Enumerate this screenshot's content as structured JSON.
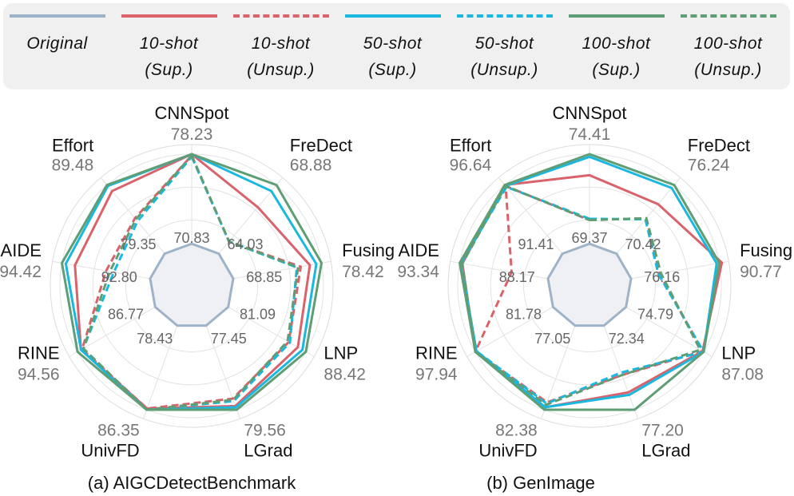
{
  "legend": {
    "items": [
      {
        "name": "Original",
        "line1": "Original",
        "line2": "",
        "color": "#9fb3c8",
        "dashed": false
      },
      {
        "name": "10-shot (Sup.)",
        "line1": "10-shot",
        "line2": "(Sup.)",
        "color": "#d9626b",
        "dashed": false
      },
      {
        "name": "10-shot (Unsup.)",
        "line1": "10-shot",
        "line2": "(Unsup.)",
        "color": "#d9626b",
        "dashed": true
      },
      {
        "name": "50-shot (Sup.)",
        "line1": "50-shot",
        "line2": "(Sup.)",
        "color": "#1ab8e0",
        "dashed": false
      },
      {
        "name": "50-shot (Unsup.)",
        "line1": "50-shot",
        "line2": "(Unsup.)",
        "color": "#1ab8e0",
        "dashed": true
      },
      {
        "name": "100-shot (Sup.)",
        "line1": "100-shot",
        "line2": "(Sup.)",
        "color": "#5f9e74",
        "dashed": false
      },
      {
        "name": "100-shot (Unsup.)",
        "line1": "100-shot",
        "line2": "(Unsup.)",
        "color": "#5f9e74",
        "dashed": true
      }
    ]
  },
  "chart_data": [
    {
      "type": "radar",
      "caption": "(a) AIGCDetectBenchmark",
      "axes": [
        "CNNSpot",
        "FreDect",
        "Fusing",
        "LNP",
        "LGrad",
        "UnivFD",
        "RINE",
        "AIDE",
        "Effort"
      ],
      "outer_labels": [
        "78.23",
        "68.88",
        "78.42",
        "88.42",
        "79.56",
        "86.35",
        "94.56",
        "94.42",
        "89.48"
      ],
      "inner_labels": [
        "70.83",
        "64.03",
        "68.85",
        "81.09",
        "77.45",
        "78.43",
        "86.77",
        "92.80",
        "79.35"
      ],
      "scale": "normalized radius per axis, original inner value = 0.32, 100-shot supervised outer value = 1.0",
      "series": [
        {
          "name": "Original",
          "values": [
            0.32,
            0.32,
            0.32,
            0.32,
            0.32,
            0.32,
            0.32,
            0.32,
            0.32
          ]
        },
        {
          "name": "10-shot (Sup.)",
          "values": [
            1.0,
            0.78,
            0.91,
            0.93,
            0.97,
            0.99,
            0.97,
            0.9,
            0.94
          ]
        },
        {
          "name": "10-shot (Unsup.)",
          "values": [
            0.99,
            0.44,
            0.84,
            0.85,
            0.91,
            0.99,
            0.96,
            0.66,
            0.67
          ]
        },
        {
          "name": "50-shot (Sup.)",
          "values": [
            1.0,
            0.94,
            0.96,
            0.97,
            0.98,
            1.0,
            0.97,
            0.97,
            0.99
          ]
        },
        {
          "name": "50-shot (Unsup.)",
          "values": [
            0.98,
            0.44,
            0.81,
            0.86,
            0.93,
            1.0,
            0.95,
            0.6,
            0.64
          ]
        },
        {
          "name": "100-shot (Sup.)",
          "values": [
            1.0,
            1.0,
            1.0,
            1.0,
            1.0,
            1.0,
            1.0,
            1.0,
            1.0
          ]
        },
        {
          "name": "100-shot (Unsup.)",
          "values": [
            0.99,
            0.44,
            0.82,
            0.84,
            0.92,
            1.0,
            0.95,
            0.63,
            0.66
          ]
        }
      ]
    },
    {
      "type": "radar",
      "caption": "(b) GenImage",
      "axes": [
        "CNNSpot",
        "FreDect",
        "Fusing",
        "LNP",
        "LGrad",
        "UnivFD",
        "RINE",
        "AIDE",
        "Effort"
      ],
      "outer_labels": [
        "74.41",
        "76.24",
        "90.77",
        "87.08",
        "77.20",
        "82.38",
        "97.94",
        "93.34",
        "96.64"
      ],
      "inner_labels": [
        "69.37",
        "70.42",
        "76.16",
        "74.79",
        "72.34",
        "77.05",
        "81.78",
        "88.17",
        "91.41"
      ],
      "scale": "normalized radius per axis, original inner value = 0.32, 100-shot supervised outer value = 1.0",
      "series": [
        {
          "name": "Original",
          "values": [
            0.32,
            0.32,
            0.32,
            0.32,
            0.32,
            0.32,
            0.32,
            0.32,
            0.32
          ]
        },
        {
          "name": "10-shot (Sup.)",
          "values": [
            0.84,
            0.81,
            1.02,
            0.99,
            0.86,
            0.98,
            1.0,
            0.98,
            1.0
          ]
        },
        {
          "name": "10-shot (Unsup.)",
          "values": [
            0.5,
            0.67,
            0.54,
            0.99,
            0.72,
            0.94,
            1.0,
            0.6,
            0.99
          ]
        },
        {
          "name": "50-shot (Sup.)",
          "values": [
            0.98,
            0.97,
            0.98,
            1.0,
            0.88,
            0.98,
            0.99,
            0.99,
            0.99
          ]
        },
        {
          "name": "50-shot (Unsup.)",
          "values": [
            0.51,
            0.66,
            0.53,
            1.0,
            0.7,
            0.95,
            0.99,
            0.99,
            0.98
          ]
        },
        {
          "name": "100-shot (Sup.)",
          "values": [
            1.0,
            1.0,
            1.0,
            1.0,
            1.0,
            1.0,
            1.0,
            1.0,
            1.0
          ]
        },
        {
          "name": "100-shot (Unsup.)",
          "values": [
            0.5,
            0.67,
            0.55,
            0.97,
            0.72,
            0.96,
            1.0,
            0.98,
            0.99
          ]
        }
      ]
    }
  ]
}
